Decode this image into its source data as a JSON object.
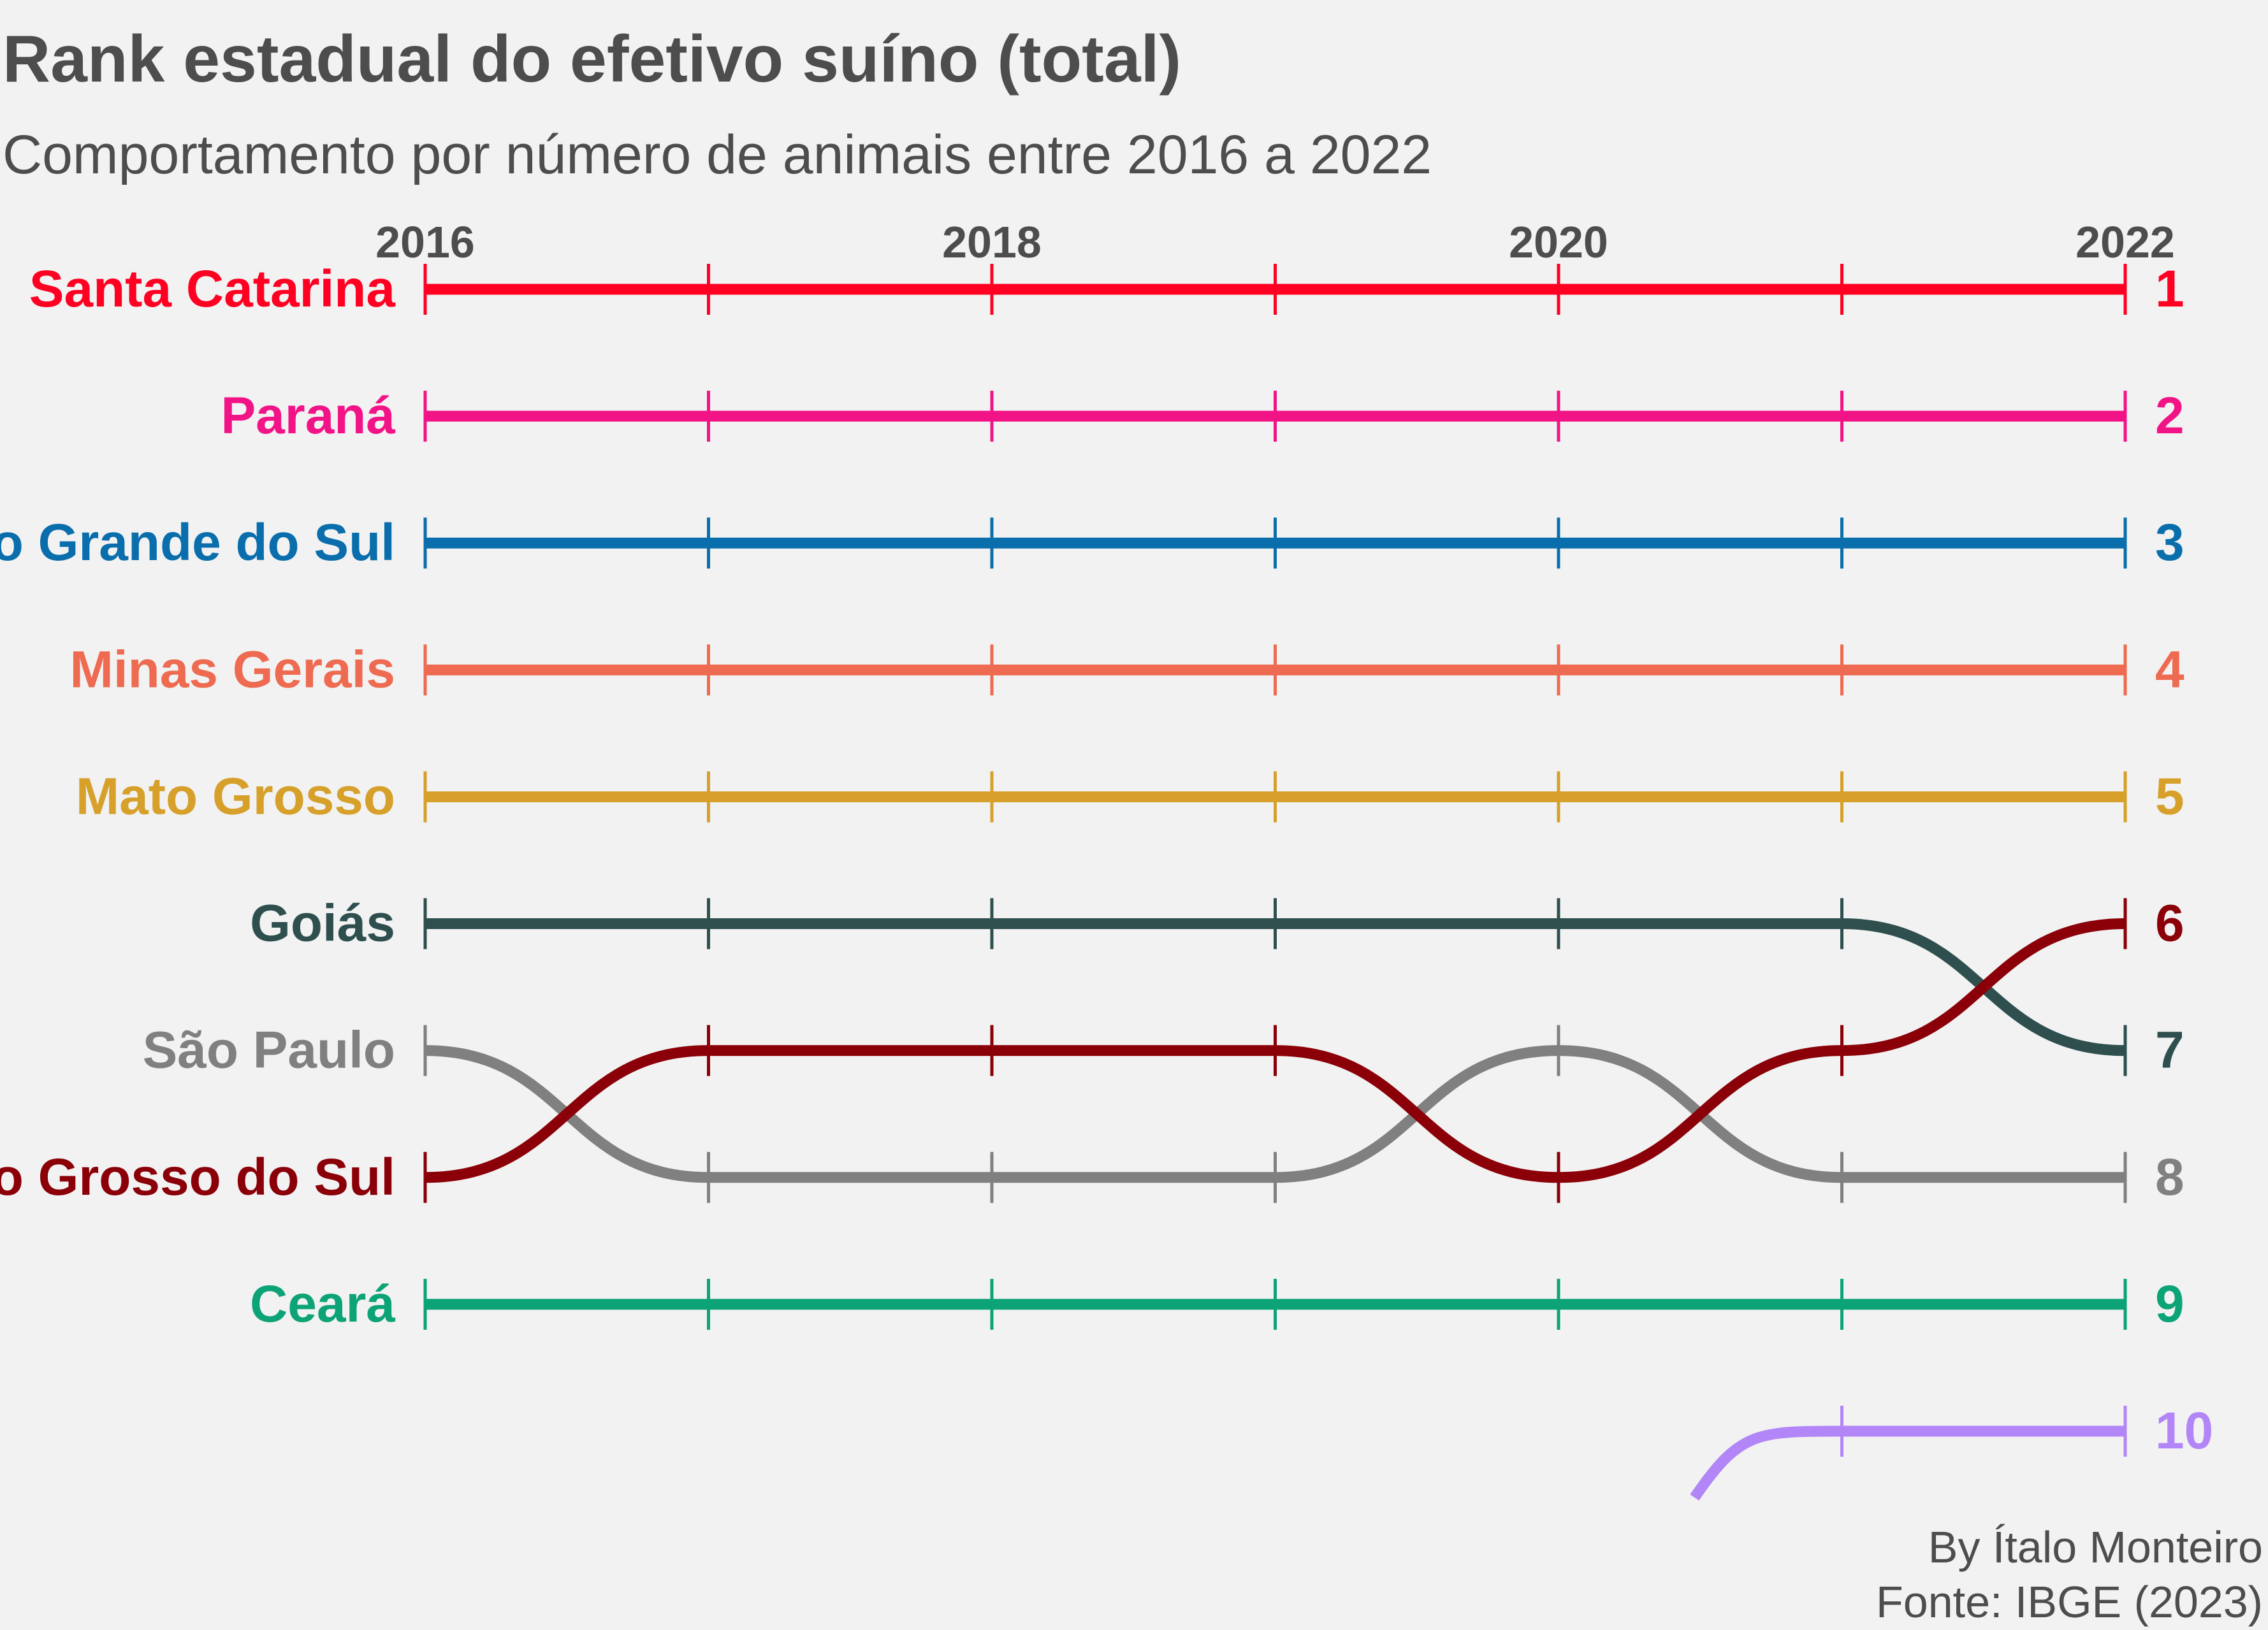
{
  "chart_data": {
    "type": "line",
    "title": "Rank estadual do efetivo suíno (total)",
    "subtitle": "Comportamento por número de animais entre 2016 a 2022",
    "x": [
      2016,
      2017,
      2018,
      2019,
      2020,
      2021,
      2022
    ],
    "x_tick_labels": [
      "2016",
      "2018",
      "2020",
      "2022"
    ],
    "y_axis": "rank",
    "ylim": [
      1,
      10
    ],
    "y_inverted": true,
    "end_rank_labels": [
      "1",
      "2",
      "3",
      "4",
      "5",
      "6",
      "7",
      "8",
      "9",
      "10"
    ],
    "series": [
      {
        "name": "Santa Catarina",
        "color": "#ff0022",
        "ranks": [
          1,
          1,
          1,
          1,
          1,
          1,
          1
        ]
      },
      {
        "name": "Paraná",
        "color": "#f21487",
        "ranks": [
          2,
          2,
          2,
          2,
          2,
          2,
          2
        ]
      },
      {
        "name": "Rio Grande do Sul",
        "color": "#0a6eac",
        "ranks": [
          3,
          3,
          3,
          3,
          3,
          3,
          3
        ]
      },
      {
        "name": "Minas Gerais",
        "color": "#ee6a50",
        "ranks": [
          4,
          4,
          4,
          4,
          4,
          4,
          4
        ]
      },
      {
        "name": "Mato Grosso",
        "color": "#d6a02a",
        "ranks": [
          5,
          5,
          5,
          5,
          5,
          5,
          5
        ]
      },
      {
        "name": "Goiás",
        "color": "#2f4f4f",
        "ranks": [
          6,
          6,
          6,
          6,
          6,
          6,
          7
        ]
      },
      {
        "name": "São Paulo",
        "color": "#808080",
        "ranks": [
          7,
          8,
          8,
          8,
          7,
          8,
          8
        ]
      },
      {
        "name": "Mato Grosso do Sul",
        "color": "#8b0008",
        "ranks": [
          8,
          7,
          7,
          7,
          8,
          7,
          6
        ]
      },
      {
        "name": "Ceará",
        "color": "#0ca377",
        "ranks": [
          9,
          9,
          9,
          9,
          9,
          9,
          9
        ]
      },
      {
        "name": "",
        "color": "#b286f7",
        "ranks": [
          null,
          null,
          null,
          null,
          null,
          10,
          10
        ]
      }
    ]
  },
  "caption": {
    "author": "By Ítalo Monteiro",
    "source": "Fonte: IBGE (2023)"
  }
}
